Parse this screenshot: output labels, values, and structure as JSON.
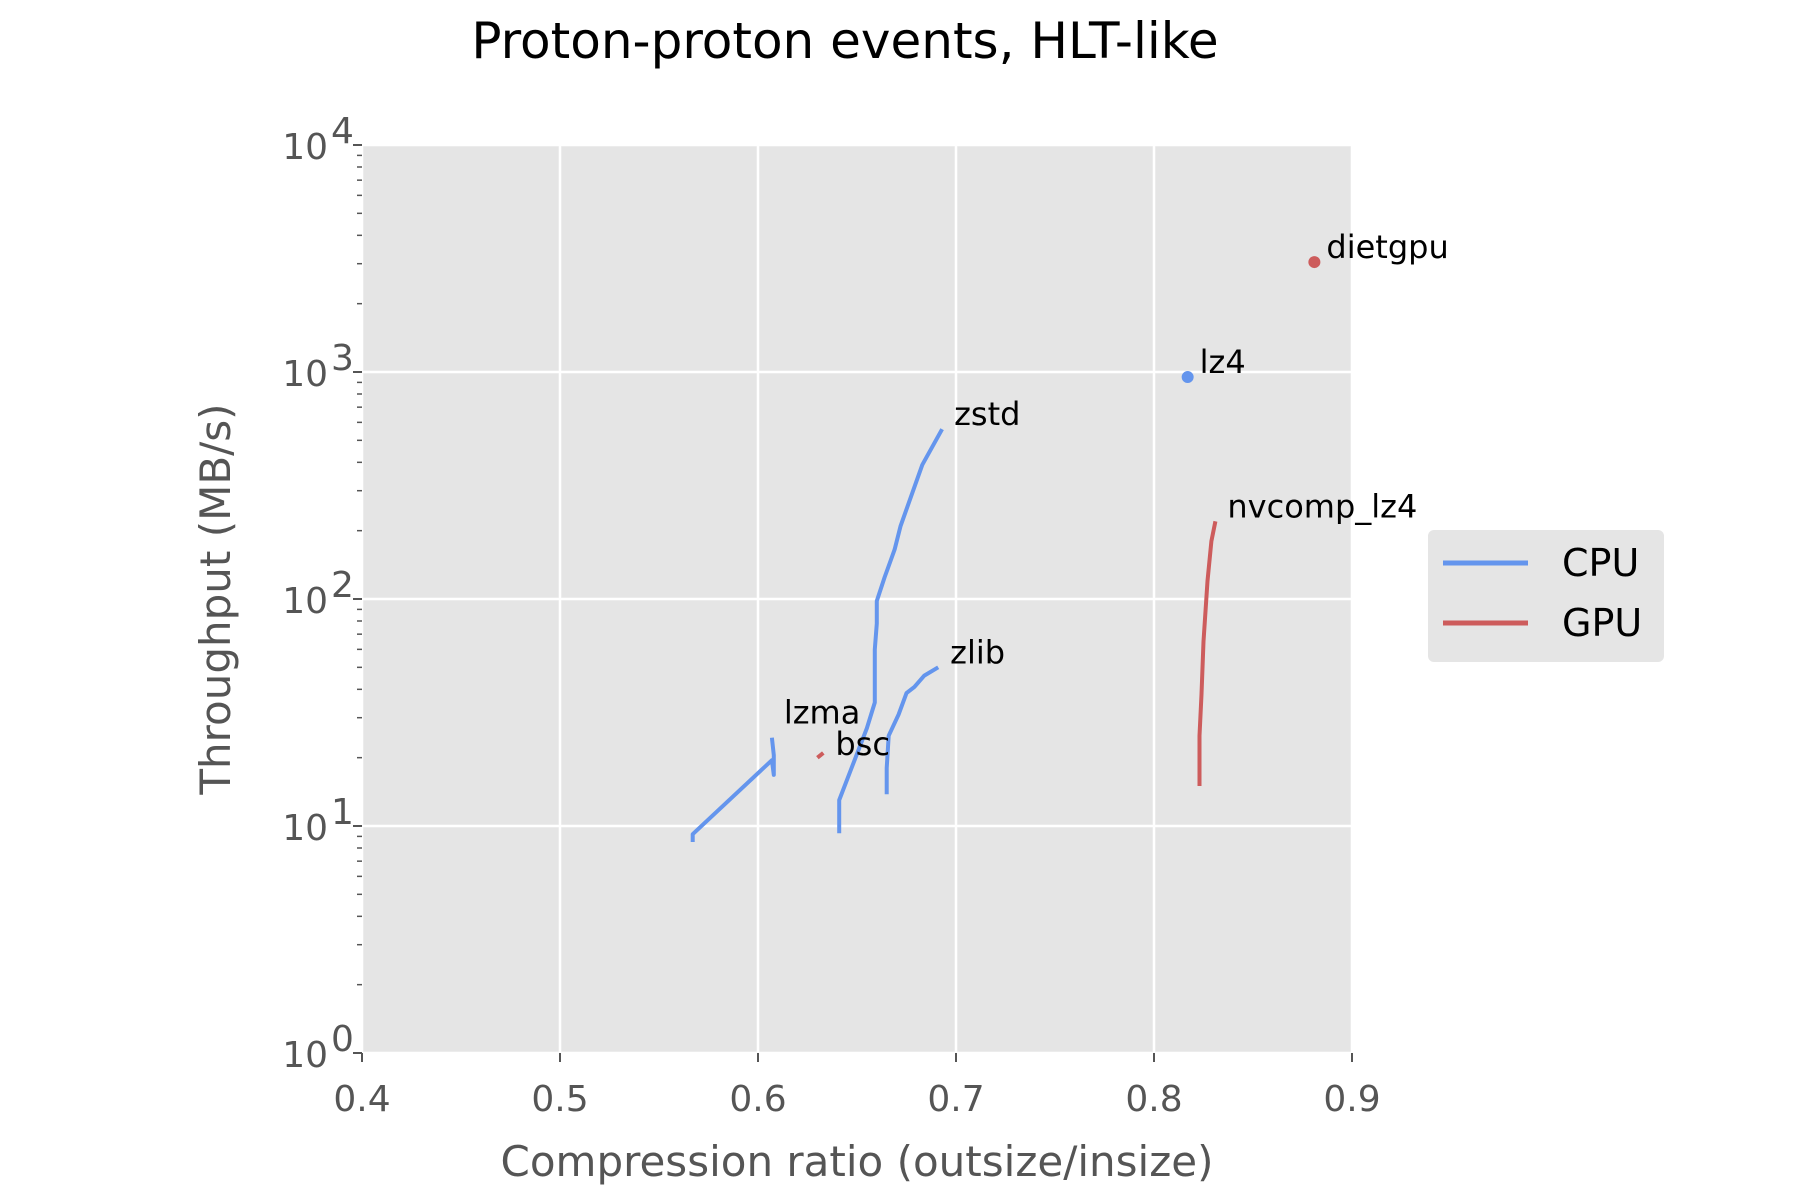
{
  "chart_data": {
    "type": "line",
    "title": "Proton-proton events, HLT-like",
    "xlabel": "Compression ratio (outsize/insize)",
    "ylabel": "Throughput (MB/s)",
    "xlim": [
      0.4,
      0.9
    ],
    "ylim": [
      1,
      10000
    ],
    "yscale": "log",
    "grid": true,
    "x_ticks": [
      "0.4",
      "0.5",
      "0.6",
      "0.7",
      "0.8",
      "0.9"
    ],
    "y_ticks": [
      {
        "base": "10",
        "exp": "0"
      },
      {
        "base": "10",
        "exp": "1"
      },
      {
        "base": "10",
        "exp": "2"
      },
      {
        "base": "10",
        "exp": "3"
      },
      {
        "base": "10",
        "exp": "4"
      }
    ],
    "legend": {
      "placement": "outside-right",
      "entries": [
        {
          "label": "CPU",
          "color": "#6495ED"
        },
        {
          "label": "GPU",
          "color": "#CD5C5C"
        }
      ]
    },
    "series": [
      {
        "label": "zstd",
        "group": "CPU",
        "color": "#6495ED",
        "marker": "line",
        "points": [
          [
            0.641,
            9.3
          ],
          [
            0.641,
            13
          ],
          [
            0.647,
            17.8
          ],
          [
            0.655,
            27
          ],
          [
            0.659,
            35
          ],
          [
            0.659,
            60
          ],
          [
            0.66,
            78
          ],
          [
            0.66,
            98
          ],
          [
            0.664,
            125
          ],
          [
            0.669,
            165
          ],
          [
            0.672,
            210
          ],
          [
            0.683,
            390
          ],
          [
            0.693,
            560
          ]
        ]
      },
      {
        "label": "zlib",
        "group": "CPU",
        "color": "#6495ED",
        "marker": "line",
        "points": [
          [
            0.665,
            13.8
          ],
          [
            0.665,
            18
          ],
          [
            0.666,
            25
          ],
          [
            0.671,
            31
          ],
          [
            0.675,
            38.5
          ],
          [
            0.679,
            41
          ],
          [
            0.684,
            46
          ],
          [
            0.691,
            50
          ]
        ]
      },
      {
        "label": "lzma",
        "group": "CPU",
        "color": "#6495ED",
        "marker": "line",
        "points": [
          [
            0.567,
            8.5
          ],
          [
            0.567,
            9.2
          ],
          [
            0.607,
            19.5
          ],
          [
            0.608,
            16.8
          ],
          [
            0.608,
            20.5
          ],
          [
            0.607,
            24.5
          ]
        ]
      },
      {
        "label": "lz4",
        "group": "CPU",
        "color": "#6495ED",
        "marker": "point",
        "points": [
          [
            0.817,
            950
          ]
        ]
      },
      {
        "label": "bsc",
        "group": "GPU",
        "color": "#CD5C5C",
        "marker": "line",
        "points": [
          [
            0.63,
            20
          ],
          [
            0.633,
            21
          ]
        ]
      },
      {
        "label": "dietgpu",
        "group": "GPU",
        "color": "#CD5C5C",
        "marker": "point",
        "points": [
          [
            0.881,
            3050
          ]
        ]
      },
      {
        "label": "nvcomp_lz4",
        "group": "GPU",
        "color": "#CD5C5C",
        "marker": "line",
        "points": [
          [
            0.823,
            15
          ],
          [
            0.823,
            25
          ],
          [
            0.824,
            38
          ],
          [
            0.825,
            65
          ],
          [
            0.827,
            120
          ],
          [
            0.829,
            180
          ],
          [
            0.831,
            220
          ]
        ]
      }
    ]
  }
}
